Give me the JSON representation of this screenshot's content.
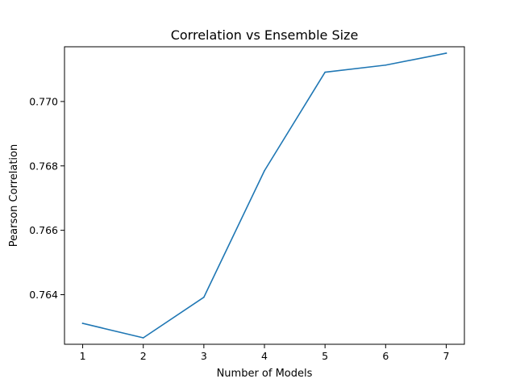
{
  "chart_data": {
    "type": "line",
    "title": "Correlation vs Ensemble Size",
    "xlabel": "Number of Models",
    "ylabel": "Pearson Correlation",
    "x": [
      1,
      2,
      3,
      4,
      5,
      6,
      7
    ],
    "series": [
      {
        "values": [
          0.76311,
          0.76266,
          0.76392,
          0.76785,
          0.77091,
          0.77113,
          0.7715
        ],
        "color": "#1f77b4"
      }
    ],
    "xticks": [
      1,
      2,
      3,
      4,
      5,
      6,
      7
    ],
    "yticks": [
      "0.764",
      "0.766",
      "0.768",
      "0.770"
    ],
    "ytick_values": [
      0.764,
      0.766,
      0.768,
      0.77
    ],
    "xlim": [
      0.7,
      7.3
    ],
    "ylim": [
      0.76246,
      0.7717
    ],
    "grid": false,
    "legend": "none"
  }
}
